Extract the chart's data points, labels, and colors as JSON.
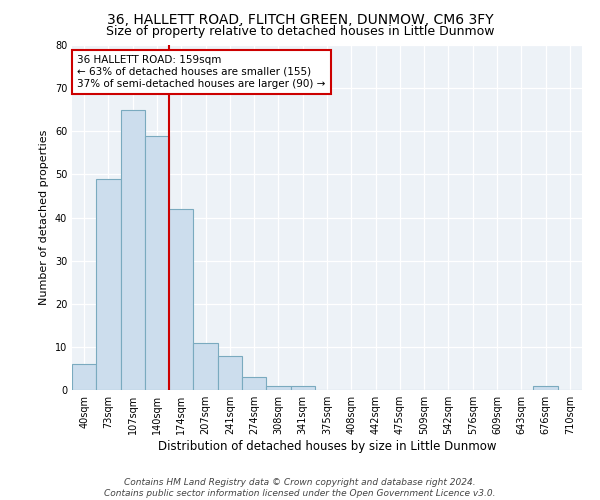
{
  "title1": "36, HALLETT ROAD, FLITCH GREEN, DUNMOW, CM6 3FY",
  "title2": "Size of property relative to detached houses in Little Dunmow",
  "xlabel": "Distribution of detached houses by size in Little Dunmow",
  "ylabel": "Number of detached properties",
  "bar_labels": [
    "40sqm",
    "73sqm",
    "107sqm",
    "140sqm",
    "174sqm",
    "207sqm",
    "241sqm",
    "274sqm",
    "308sqm",
    "341sqm",
    "375sqm",
    "408sqm",
    "442sqm",
    "475sqm",
    "509sqm",
    "542sqm",
    "576sqm",
    "609sqm",
    "643sqm",
    "676sqm",
    "710sqm"
  ],
  "bar_heights": [
    6,
    49,
    65,
    59,
    42,
    11,
    8,
    3,
    1,
    1,
    0,
    0,
    0,
    0,
    0,
    0,
    0,
    0,
    0,
    1,
    0
  ],
  "bar_color": "#ccdded",
  "bar_edge_color": "#7aaabf",
  "vline_x": 3.5,
  "vline_color": "#cc0000",
  "annotation_text": "36 HALLETT ROAD: 159sqm\n← 63% of detached houses are smaller (155)\n37% of semi-detached houses are larger (90) →",
  "annotation_box_color": "#ffffff",
  "annotation_box_edge": "#cc0000",
  "ylim": [
    0,
    80
  ],
  "yticks": [
    0,
    10,
    20,
    30,
    40,
    50,
    60,
    70,
    80
  ],
  "footer1": "Contains HM Land Registry data © Crown copyright and database right 2024.",
  "footer2": "Contains public sector information licensed under the Open Government Licence v3.0.",
  "plot_bg_color": "#edf2f7",
  "title1_fontsize": 10,
  "title2_fontsize": 9,
  "xlabel_fontsize": 8.5,
  "ylabel_fontsize": 8,
  "tick_fontsize": 7,
  "annotation_fontsize": 7.5,
  "footer_fontsize": 6.5
}
